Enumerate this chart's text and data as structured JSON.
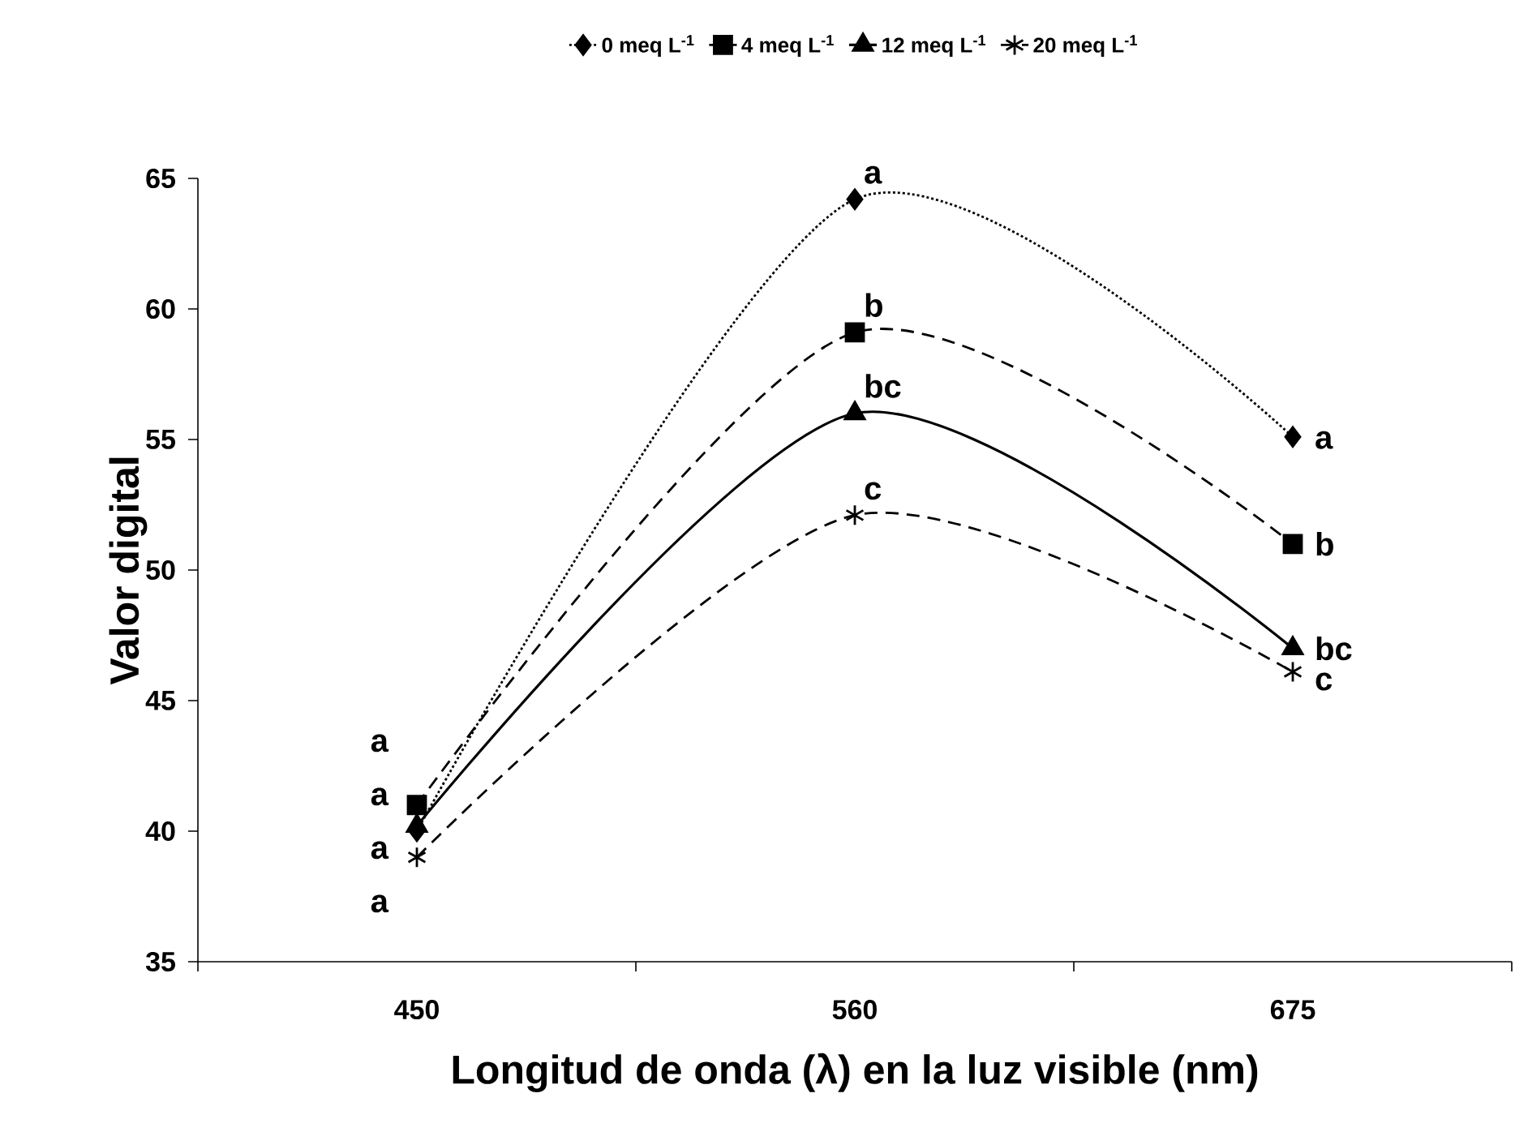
{
  "chart_data": {
    "type": "line",
    "xlabel": "Longitud de onda (λ) en la luz visible (nm)",
    "ylabel": "Valor digital",
    "categories": [
      "450",
      "560",
      "675"
    ],
    "series": [
      {
        "name": "0 meq L$^{-1}$",
        "color": "#000000",
        "values": [
          40.0,
          64.2,
          55.1
        ],
        "marker": "diamond",
        "line_style": "dotted"
      },
      {
        "name": "4 meq L$^{-1}$",
        "color": "#000000",
        "values": [
          41.0,
          59.1,
          51.0
        ],
        "marker": "square",
        "line_style": "dashed"
      },
      {
        "name": "12 meq L$^{-1}$",
        "color": "#000000",
        "values": [
          40.2,
          56.0,
          47.0
        ],
        "marker": "triangle",
        "line_style": "solid"
      },
      {
        "name": "20 meq L$^{-1}$",
        "color": "#000000",
        "values": [
          39.0,
          52.1,
          46.1
        ],
        "marker": "cross",
        "line_style": "dashed"
      }
    ],
    "ylim": [
      35,
      65
    ],
    "yticks": [
      35,
      40,
      45,
      50,
      55,
      60,
      65
    ],
    "grid": false,
    "legend": "top",
    "annotations": [
      {
        "text": "a",
        "x": "450",
        "y": 41.0
      },
      {
        "text": "a",
        "x": "450",
        "y": 40.2
      },
      {
        "text": "a",
        "x": "450",
        "y": 40.0
      },
      {
        "text": "a",
        "x": "450",
        "y": 39.0
      },
      {
        "text": "a",
        "x": "560",
        "y": 64.2
      },
      {
        "text": "b",
        "x": "560",
        "y": 59.1
      },
      {
        "text": "bc",
        "x": "560",
        "y": 56.0
      },
      {
        "text": "c",
        "x": "560",
        "y": 52.1
      },
      {
        "text": "a",
        "x": "675",
        "y": 55.1
      },
      {
        "text": "b",
        "x": "675",
        "y": 51.0
      },
      {
        "text": "bc",
        "x": "675",
        "y": 47.0
      },
      {
        "text": "c",
        "x": "675",
        "y": 46.1
      }
    ]
  }
}
